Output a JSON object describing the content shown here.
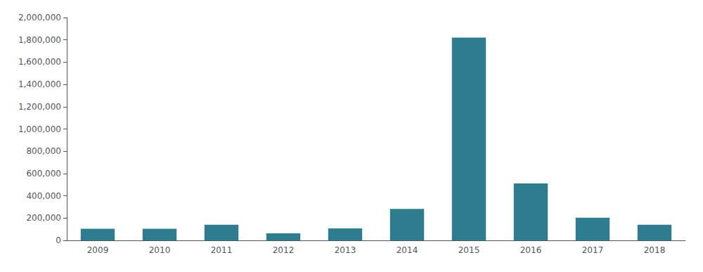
{
  "chart_data": {
    "type": "bar",
    "categories": [
      "2009",
      "2010",
      "2011",
      "2012",
      "2013",
      "2014",
      "2015",
      "2016",
      "2017",
      "2018"
    ],
    "values": [
      104000,
      104000,
      141000,
      63000,
      107000,
      283000,
      1820000,
      511000,
      204000,
      141000
    ],
    "color": "#2e7d8e",
    "ylim": [
      0,
      2000000
    ],
    "yticks": [
      0,
      {
        "value": 200000,
        "label": "200,000"
      },
      {
        "value": 400000,
        "label": "400,000"
      },
      {
        "value": 600000,
        "label": "600,000"
      },
      {
        "value": 800000,
        "label": "800,000"
      },
      {
        "value": 1000000,
        "label": "1,000,000"
      },
      {
        "value": 1200000,
        "label": "1,200,000"
      },
      {
        "value": 1400000,
        "label": "1,400,000"
      },
      {
        "value": 1600000,
        "label": "1,600,000"
      },
      {
        "value": 1800000,
        "label": "1,800,000"
      },
      {
        "value": 2000000,
        "label": "2,000,000"
      }
    ],
    "grid": false
  }
}
